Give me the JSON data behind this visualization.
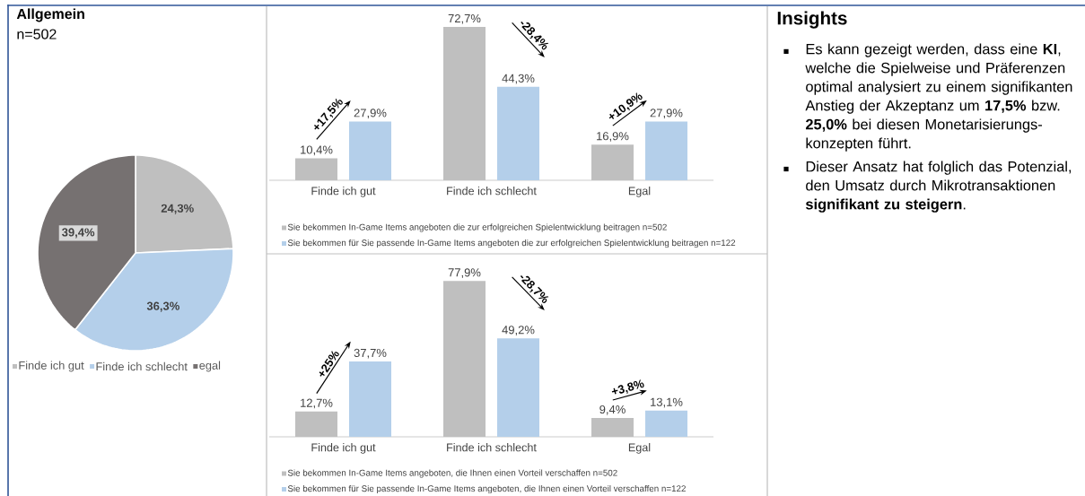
{
  "chart_data": [
    {
      "type": "pie",
      "title": "Allgemein",
      "subtitle": "n=502",
      "categories": [
        "Finde ich gut",
        "Finde ich schlecht",
        "egal"
      ],
      "values": [
        24.3,
        36.3,
        39.4
      ],
      "colors": [
        "#bfbfbf",
        "#b4cfea",
        "#767171"
      ],
      "value_labels": [
        "24,3%",
        "36,3%",
        "39,4%"
      ],
      "legend": "bottom"
    },
    {
      "type": "bar",
      "categories": [
        "Finde ich gut",
        "Finde ich schlecht",
        "Egal"
      ],
      "tick_labels": "x",
      "legend": "bottom",
      "annotations": [
        "+17,5%",
        "-28,4%",
        "+10,9%"
      ],
      "series": [
        {
          "name": "Sie bekommen In-Game Items angeboten die zur erfolgreichen Spielentwicklung beitragen n=502",
          "color": "#bfbfbf",
          "values": [
            10.4,
            72.7,
            16.9
          ],
          "value_labels": [
            "10,4%",
            "72,7%",
            "16,9%"
          ]
        },
        {
          "name": "Sie bekommen für Sie passende In-Game Items angeboten die zur erfolgreichen Spielentwicklung beitragen n=122",
          "color": "#b4cfea",
          "values": [
            27.9,
            44.3,
            27.9
          ],
          "value_labels": [
            "27,9%",
            "44,3%",
            "27,9%"
          ]
        }
      ]
    },
    {
      "type": "bar",
      "categories": [
        "Finde ich gut",
        "Finde ich schlecht",
        "Egal"
      ],
      "tick_labels": "x",
      "legend": "bottom",
      "annotations": [
        "+25%",
        "-28,7%",
        "+3,8%"
      ],
      "series": [
        {
          "name": "Sie bekommen In-Game Items angeboten, die Ihnen einen Vorteil verschaffen n=502",
          "color": "#bfbfbf",
          "values": [
            12.7,
            77.9,
            9.4
          ],
          "value_labels": [
            "12,7%",
            "77,9%",
            "9,4%"
          ]
        },
        {
          "name": "Sie bekommen für Sie passende In-Game Items angeboten, die Ihnen einen Vorteil verschaffen n=122",
          "color": "#b4cfea",
          "values": [
            37.7,
            49.2,
            13.1
          ],
          "value_labels": [
            "37,7%",
            "49,2%",
            "13,1%"
          ]
        }
      ]
    },
    {
      "type": "other",
      "title": "Insights",
      "annotations": [
        "Es kann gezeigt werden, dass eine **KI**, welche die Spielweise und Präferenzen optimal analysiert zu einem signifikanten Anstieg der Akzeptanz um **17,5%** bzw. **25,0%** bei diesen Monetarisierungs-konzepten führt.",
        "Dieser Ansatz hat folglich das Potenzial, den Umsatz durch Mikrotransaktionen **signifikant zu steigern**."
      ]
    }
  ]
}
